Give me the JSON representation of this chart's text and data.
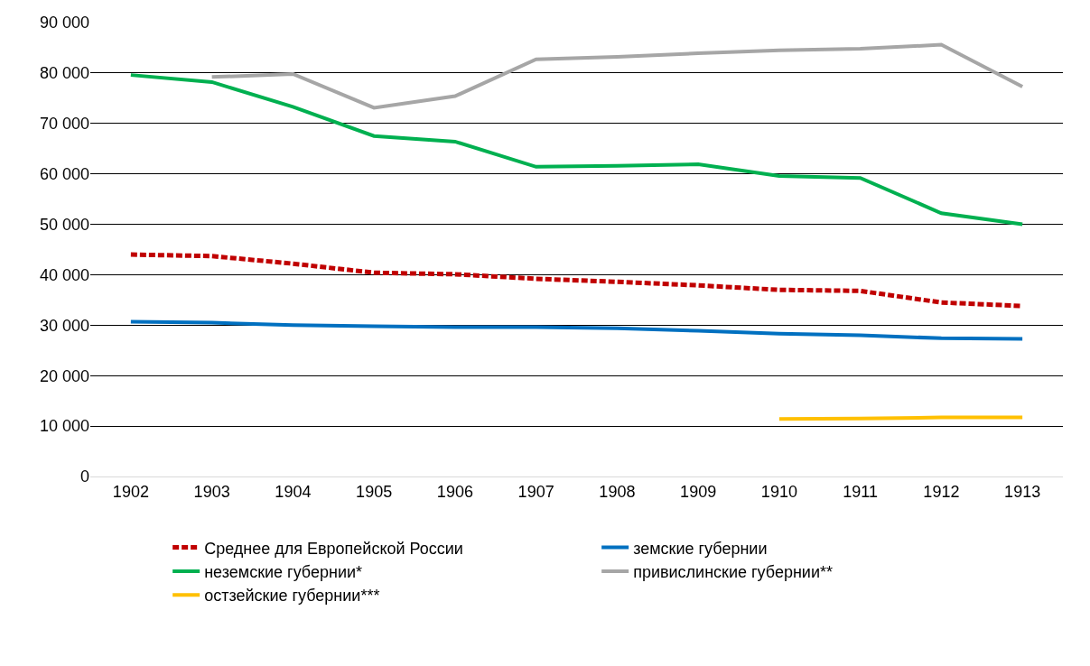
{
  "chart_data": {
    "type": "line",
    "categories": [
      "1902",
      "1903",
      "1904",
      "1905",
      "1906",
      "1907",
      "1908",
      "1909",
      "1910",
      "1911",
      "1912",
      "1913"
    ],
    "series": [
      {
        "name": "Среднее для Европейской России",
        "color": "#c00000",
        "line_style": "dashed",
        "values": [
          44000,
          43700,
          42200,
          40400,
          40100,
          39200,
          38600,
          37900,
          37000,
          36800,
          34500,
          33800
        ]
      },
      {
        "name": "земские губернии",
        "color": "#0070c0",
        "values": [
          30700,
          30500,
          30000,
          29800,
          29600,
          29600,
          29400,
          28900,
          28300,
          28000,
          27400,
          27300
        ]
      },
      {
        "name": "неземские губернии*",
        "color": "#00b050",
        "values": [
          79600,
          78200,
          73300,
          67500,
          66400,
          61400,
          61600,
          61900,
          59600,
          59200,
          52200,
          50000
        ]
      },
      {
        "name": "привислинские губернии**",
        "color": "#a6a6a6",
        "values": [
          null,
          79200,
          79800,
          73100,
          75400,
          82700,
          83200,
          83900,
          84500,
          84800,
          85600,
          77300
        ]
      },
      {
        "name": "остзейские губернии***",
        "color": "#ffc000",
        "values": [
          null,
          null,
          null,
          null,
          null,
          null,
          null,
          null,
          11400,
          11500,
          11700,
          11700
        ]
      }
    ],
    "ylim": [
      0,
      90000
    ],
    "yticks": [
      0,
      {
        "value": 10000,
        "label": "10 000"
      },
      {
        "value": 20000,
        "label": "20 000"
      },
      {
        "value": 30000,
        "label": "30 000"
      },
      {
        "value": 40000,
        "label": "40 000"
      },
      {
        "value": 50000,
        "label": "50 000"
      },
      {
        "value": 60000,
        "label": "60 000"
      },
      {
        "value": 70000,
        "label": "70 000"
      },
      {
        "value": 80000,
        "label": "80 000"
      },
      {
        "value": 90000,
        "label": "90 000"
      }
    ],
    "grid": "y",
    "legend": "bottom",
    "marker": "none",
    "line_style": "solid"
  }
}
